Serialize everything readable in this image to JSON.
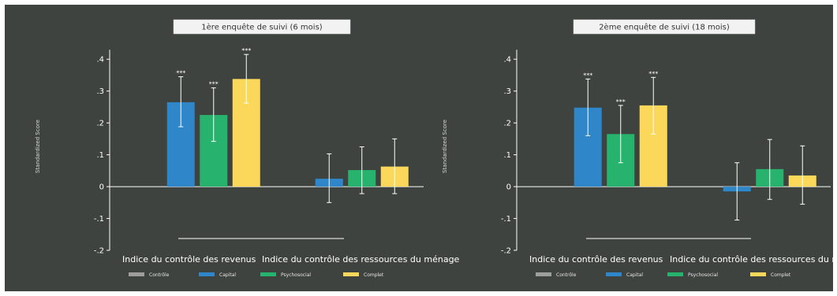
{
  "chart_data": [
    {
      "type": "bar",
      "title": "1ère enquête de suivi (6 mois)",
      "ylabel": "Standardized Score",
      "ylim": [
        -0.2,
        0.45
      ],
      "yticks": [
        ".4",
        ".3",
        ".2",
        ".1",
        "0",
        "-.1",
        "-.2"
      ],
      "yticks_values": [
        0.4,
        0.3,
        0.2,
        0.1,
        0,
        -0.1,
        -0.2
      ],
      "categories": [
        "Indice du contrôle des revenus",
        "Indice du contrôle des ressources du ménage"
      ],
      "series": [
        {
          "name": "Contrôle",
          "values": [
            0,
            0
          ],
          "ci_low": [
            null,
            null
          ],
          "ci_high": [
            null,
            null
          ],
          "labels": [
            "",
            ""
          ]
        },
        {
          "name": "Capital",
          "values": [
            0.265,
            0.025
          ],
          "ci_low": [
            0.188,
            -0.05
          ],
          "ci_high": [
            0.345,
            0.103
          ],
          "labels": [
            "***",
            ""
          ]
        },
        {
          "name": "Psychosocial",
          "values": [
            0.225,
            0.052
          ],
          "ci_low": [
            0.142,
            -0.022
          ],
          "ci_high": [
            0.31,
            0.125
          ],
          "labels": [
            "***",
            ""
          ]
        },
        {
          "name": "Complet",
          "values": [
            0.338,
            0.063
          ],
          "ci_low": [
            0.262,
            -0.022
          ],
          "ci_high": [
            0.415,
            0.15
          ],
          "labels": [
            "***",
            ""
          ]
        }
      ]
    },
    {
      "type": "bar",
      "title": "2ème enquête de suivi (18 mois)",
      "ylabel": "Standardized Score",
      "ylim": [
        -0.2,
        0.45
      ],
      "yticks": [
        ".4",
        ".3",
        ".2",
        ".1",
        "0",
        "-.1",
        "-.2"
      ],
      "yticks_values": [
        0.4,
        0.3,
        0.2,
        0.1,
        0,
        -0.1,
        -0.2
      ],
      "categories": [
        "Indice du contrôle des revenus",
        "Indice du contrôle des ressources du ménage"
      ],
      "series": [
        {
          "name": "Contrôle",
          "values": [
            0,
            0
          ],
          "ci_low": [
            null,
            null
          ],
          "ci_high": [
            null,
            null
          ],
          "labels": [
            "",
            ""
          ]
        },
        {
          "name": "Capital",
          "values": [
            0.248,
            -0.015
          ],
          "ci_low": [
            0.16,
            -0.105
          ],
          "ci_high": [
            0.338,
            0.075
          ],
          "labels": [
            "***",
            ""
          ]
        },
        {
          "name": "Psychosocial",
          "values": [
            0.165,
            0.055
          ],
          "ci_low": [
            0.075,
            -0.04
          ],
          "ci_high": [
            0.255,
            0.148
          ],
          "labels": [
            "***",
            ""
          ]
        },
        {
          "name": "Complet",
          "values": [
            0.255,
            0.035
          ],
          "ci_low": [
            0.165,
            -0.055
          ],
          "ci_high": [
            0.343,
            0.128
          ],
          "labels": [
            "***",
            ""
          ]
        }
      ]
    }
  ],
  "colors": {
    "background": "#3e433f",
    "Contrôle": "#9e9e9e",
    "Capital": "#2f86c8",
    "Psychosocial": "#27b36d",
    "Complet": "#fcd85a"
  },
  "legend_position": "bottom",
  "grid": false
}
